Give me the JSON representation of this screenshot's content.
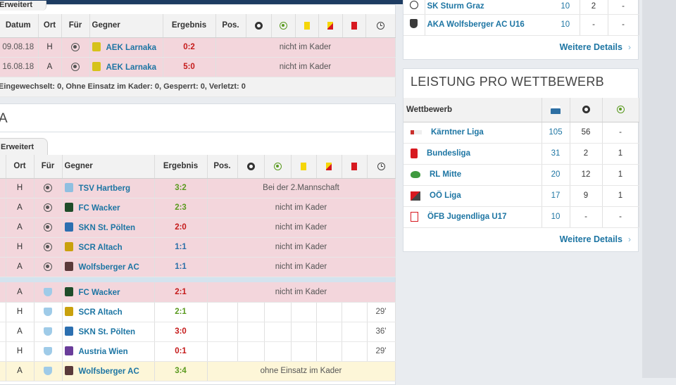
{
  "top_table": {
    "tab_label": "Erweitert",
    "headers": [
      "Datum",
      "Ort",
      "Für",
      "Gegner",
      "Ergebnis",
      "Pos."
    ],
    "rows": [
      {
        "date": "09.08.18",
        "venue": "H",
        "opponent": "AEK Larnaka",
        "result": "0:2",
        "note": "nicht im Kader"
      },
      {
        "date": "16.08.18",
        "venue": "A",
        "opponent": "AEK Larnaka",
        "result": "5:0",
        "note": "nicht im Kader"
      }
    ],
    "summary": "Eingewechselt: 0, Ohne Einsatz im Kader: 0, Gesperrt: 0, Verletzt: 0"
  },
  "league_section": {
    "title_fragment": "A",
    "tab_label": "Erweitert",
    "headers": [
      "Ort",
      "Für",
      "Gegner",
      "Ergebnis",
      "Pos."
    ],
    "rows": [
      {
        "venue": "H",
        "opponent": "TSV Hartberg",
        "result": "3:2",
        "res": "win",
        "note": "Bei der 2.Mannschaft",
        "style": "pink"
      },
      {
        "venue": "A",
        "opponent": "FC Wacker",
        "result": "2:3",
        "res": "win",
        "note": "nicht im Kader",
        "style": "pink"
      },
      {
        "venue": "A",
        "opponent": "SKN St. Pölten",
        "result": "2:0",
        "res": "loss",
        "note": "nicht im Kader",
        "style": "pink"
      },
      {
        "venue": "H",
        "opponent": "SCR Altach",
        "result": "1:1",
        "res": "draw",
        "note": "nicht im Kader",
        "style": "pink"
      },
      {
        "venue": "A",
        "opponent": "Wolfsberger AC",
        "result": "1:1",
        "res": "draw",
        "note": "nicht im Kader",
        "style": "pink"
      },
      {
        "separator": true
      },
      {
        "venue": "A",
        "opponent": "FC Wacker",
        "result": "2:1",
        "res": "loss",
        "note": "nicht im Kader",
        "style": "pink"
      },
      {
        "venue": "H",
        "opponent": "SCR Altach",
        "result": "2:1",
        "res": "win",
        "minute": "29'",
        "style": "white"
      },
      {
        "venue": "A",
        "opponent": "SKN St. Pölten",
        "result": "3:0",
        "res": "loss",
        "minute": "36'",
        "style": "white"
      },
      {
        "venue": "H",
        "opponent": "Austria Wien",
        "result": "0:1",
        "res": "loss",
        "minute": "29'",
        "style": "white"
      },
      {
        "venue": "A",
        "opponent": "Wolfsberger AC",
        "result": "3:4",
        "res": "win",
        "note": "ohne Einsatz im Kader",
        "style": "yellow"
      }
    ]
  },
  "right_top": {
    "rows": [
      {
        "team": "SK Sturm Graz",
        "a": "10",
        "b": "2",
        "c": "-"
      },
      {
        "team": "AKA Wolfsberger AC U16",
        "a": "10",
        "b": "-",
        "c": "-"
      }
    ],
    "more_label": "Weitere Details"
  },
  "competition": {
    "title": "LEISTUNG PRO WETTBEWERB",
    "header_label": "Wettbewerb",
    "rows": [
      {
        "name": "Kärntner Liga",
        "apps": "105",
        "goals": "56",
        "assists": "-"
      },
      {
        "name": "Bundesliga",
        "apps": "31",
        "goals": "2",
        "assists": "1"
      },
      {
        "name": "RL Mitte",
        "apps": "20",
        "goals": "12",
        "assists": "1"
      },
      {
        "name": "OÖ Liga",
        "apps": "17",
        "goals": "9",
        "assists": "1"
      },
      {
        "name": "ÖFB Jugendliga U17",
        "apps": "10",
        "goals": "-",
        "assists": "-"
      }
    ],
    "more_label": "Weitere Details"
  },
  "colors": {
    "brand": "#1d3c62",
    "link": "#1d75a3",
    "pink": "#f3d6dc",
    "win": "#5a9a1f",
    "loss": "#c51a1a",
    "draw": "#2b6fa8"
  }
}
